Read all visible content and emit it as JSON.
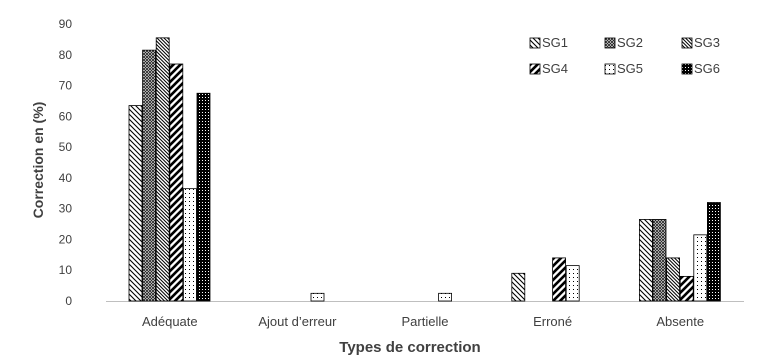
{
  "chart_data": {
    "type": "bar",
    "title": "",
    "xlabel": "Types de correction",
    "ylabel": "Correction en (%)",
    "ylim": [
      0,
      90
    ],
    "yticks": [
      0,
      10,
      20,
      30,
      40,
      50,
      60,
      70,
      80,
      90
    ],
    "grid": false,
    "legend_position": "top-right",
    "categories": [
      "Adéquate",
      "Ajout d’erreur",
      "Partielle",
      "Erroné",
      "Absente"
    ],
    "series": [
      {
        "name": "SG1",
        "pattern": "diagonal-back",
        "values": [
          63.5,
          0,
          0,
          9,
          26.5
        ]
      },
      {
        "name": "SG2",
        "pattern": "crosshatch-dense",
        "values": [
          81.5,
          0,
          0,
          0,
          26.5
        ]
      },
      {
        "name": "SG3",
        "pattern": "diagonal-back-dense",
        "values": [
          85.5,
          0,
          0,
          0,
          14
        ]
      },
      {
        "name": "SG4",
        "pattern": "diagonal-forward-wide",
        "values": [
          77,
          0,
          0,
          14,
          8
        ]
      },
      {
        "name": "SG5",
        "pattern": "dots-sparse",
        "values": [
          36.5,
          2.5,
          2.5,
          11.5,
          21.5
        ]
      },
      {
        "name": "SG6",
        "pattern": "checker-dense",
        "values": [
          67.5,
          0,
          0,
          0,
          32
        ]
      }
    ]
  }
}
